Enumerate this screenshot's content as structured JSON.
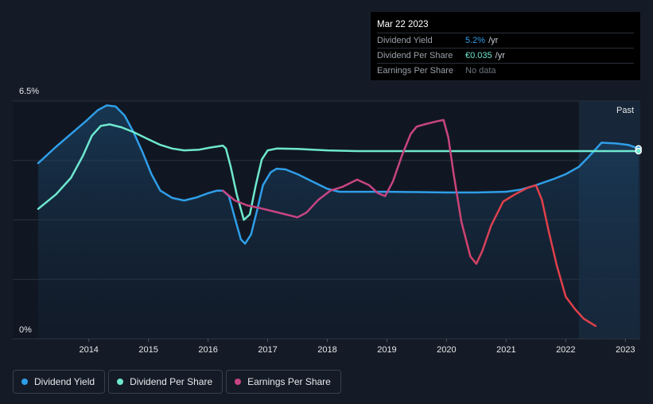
{
  "tooltip": {
    "date": "Mar 22 2023",
    "rows": [
      {
        "label": "Dividend Yield",
        "value": "5.2%",
        "unit": "/yr"
      },
      {
        "label": "Dividend Per Share",
        "value": "€0.035",
        "unit": "/yr"
      },
      {
        "label": "Earnings Per Share",
        "value": "No data"
      }
    ]
  },
  "past_label": "Past",
  "legend": [
    {
      "label": "Dividend Yield",
      "color": "#2f9ee8"
    },
    {
      "label": "Dividend Per Share",
      "color": "#6ee8d0"
    },
    {
      "label": "Earnings Per Share",
      "color": "#c84482"
    }
  ],
  "chart_data": {
    "type": "line",
    "title": "",
    "xlabel": "",
    "ylabel": "",
    "y_tick_labels": [
      "6.5%",
      "0%"
    ],
    "ylim": [
      0,
      6.5
    ],
    "xlim": [
      2013.15,
      2023.25
    ],
    "x_ticks": [
      2014,
      2015,
      2016,
      2017,
      2018,
      2019,
      2020,
      2021,
      2022,
      2023
    ],
    "grid": true,
    "past_region_start": 2022.22,
    "series": [
      {
        "name": "Dividend Yield",
        "color": "#2f9ee8",
        "filled": true,
        "x": [
          2013.15,
          2013.45,
          2013.7,
          2013.95,
          2014.15,
          2014.3,
          2014.45,
          2014.6,
          2014.75,
          2014.9,
          2015.05,
          2015.2,
          2015.4,
          2015.6,
          2015.8,
          2016.0,
          2016.15,
          2016.25,
          2016.35,
          2016.45,
          2016.55,
          2016.62,
          2016.72,
          2016.82,
          2016.92,
          2017.05,
          2017.15,
          2017.3,
          2017.5,
          2017.75,
          2018.0,
          2018.2,
          2018.5,
          2019.0,
          2019.5,
          2020.0,
          2020.5,
          2021.0,
          2021.25,
          2021.5,
          2021.8,
          2022.0,
          2022.22,
          2022.4,
          2022.6,
          2022.85,
          2023.05,
          2023.22
        ],
        "y": [
          4.8,
          5.25,
          5.6,
          5.95,
          6.25,
          6.38,
          6.35,
          6.1,
          5.65,
          5.1,
          4.5,
          4.05,
          3.85,
          3.78,
          3.86,
          3.98,
          4.05,
          4.05,
          3.9,
          3.3,
          2.72,
          2.6,
          2.85,
          3.5,
          4.2,
          4.55,
          4.65,
          4.63,
          4.5,
          4.3,
          4.1,
          4.02,
          4.02,
          4.02,
          4.01,
          4.0,
          4.0,
          4.02,
          4.08,
          4.2,
          4.37,
          4.5,
          4.7,
          5.0,
          5.36,
          5.34,
          5.3,
          5.2
        ]
      },
      {
        "name": "Dividend Per Share",
        "color": "#6ee8d0",
        "filled": false,
        "x": [
          2013.15,
          2013.45,
          2013.7,
          2013.9,
          2014.05,
          2014.2,
          2014.35,
          2014.55,
          2014.75,
          2015.0,
          2015.2,
          2015.4,
          2015.6,
          2015.85,
          2016.05,
          2016.25,
          2016.3,
          2016.38,
          2016.48,
          2016.6,
          2016.7,
          2016.8,
          2016.9,
          2017.0,
          2017.15,
          2017.5,
          2018.0,
          2018.5,
          2019.0,
          2019.5,
          2020.0,
          2020.5,
          2021.0,
          2021.5,
          2022.0,
          2022.5,
          2023.0,
          2023.22
        ],
        "y": [
          3.55,
          3.95,
          4.4,
          5.0,
          5.55,
          5.82,
          5.86,
          5.78,
          5.65,
          5.45,
          5.3,
          5.2,
          5.15,
          5.17,
          5.23,
          5.28,
          5.2,
          4.7,
          3.95,
          3.25,
          3.4,
          4.2,
          4.9,
          5.15,
          5.2,
          5.19,
          5.15,
          5.13,
          5.13,
          5.13,
          5.13,
          5.13,
          5.13,
          5.13,
          5.13,
          5.13,
          5.13,
          5.13
        ]
      },
      {
        "name": "Earnings Per Share",
        "color": "#c84482",
        "filled": false,
        "x": [
          2016.25,
          2016.45,
          2016.65,
          2016.85,
          2017.1,
          2017.35,
          2017.5,
          2017.65,
          2017.85,
          2018.05,
          2018.25,
          2018.5,
          2018.7,
          2018.85,
          2018.97,
          2019.1,
          2019.25,
          2019.4,
          2019.5,
          2019.65,
          2019.85,
          2019.95,
          2020.03,
          2020.12,
          2020.25,
          2020.4,
          2020.5,
          2020.6,
          2020.75,
          2020.95,
          2021.15,
          2021.35,
          2021.5,
          2021.6,
          2021.72,
          2021.85,
          2022.0,
          2022.15,
          2022.3,
          2022.5
        ],
        "y": [
          4.05,
          3.78,
          3.65,
          3.58,
          3.48,
          3.38,
          3.32,
          3.45,
          3.8,
          4.05,
          4.15,
          4.35,
          4.2,
          3.98,
          3.9,
          4.3,
          5.0,
          5.6,
          5.8,
          5.87,
          5.95,
          5.98,
          5.5,
          4.5,
          3.2,
          2.25,
          2.05,
          2.4,
          3.1,
          3.75,
          3.95,
          4.12,
          4.2,
          3.8,
          2.9,
          2.0,
          1.15,
          0.82,
          0.55,
          0.35
        ]
      }
    ]
  }
}
